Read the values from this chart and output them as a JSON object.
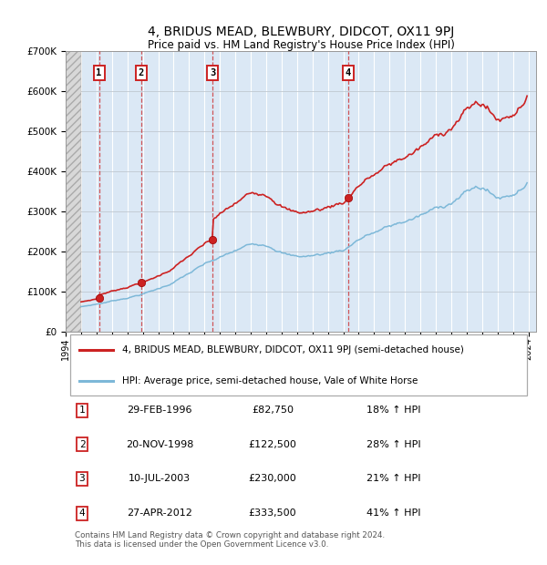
{
  "title": "4, BRIDUS MEAD, BLEWBURY, DIDCOT, OX11 9PJ",
  "subtitle": "Price paid vs. HM Land Registry's House Price Index (HPI)",
  "sale_details": [
    {
      "num": "1",
      "date": "29-FEB-1996",
      "price": "£82,750",
      "hpi": "18% ↑ HPI"
    },
    {
      "num": "2",
      "date": "20-NOV-1998",
      "price": "£122,500",
      "hpi": "28% ↑ HPI"
    },
    {
      "num": "3",
      "date": "10-JUL-2003",
      "price": "£230,000",
      "hpi": "21% ↑ HPI"
    },
    {
      "num": "4",
      "date": "27-APR-2012",
      "price": "£333,500",
      "hpi": "41% ↑ HPI"
    }
  ],
  "sale_dates_numeric": [
    1996.163,
    1998.893,
    2003.526,
    2012.327
  ],
  "sale_prices": [
    82750,
    122500,
    230000,
    333500
  ],
  "hpi_line_color": "#7db8d8",
  "price_line_color": "#cc2222",
  "label_box_color": "#cc2222",
  "chart_bg_color": "#dbe8f5",
  "ylim": [
    0,
    700000
  ],
  "xlim_start": 1994.0,
  "xlim_end": 2024.5,
  "hatch_end": 1995.0,
  "legend_label_property": "4, BRIDUS MEAD, BLEWBURY, DIDCOT, OX11 9PJ (semi-detached house)",
  "legend_label_hpi": "HPI: Average price, semi-detached house, Vale of White Horse",
  "footnote": "Contains HM Land Registry data © Crown copyright and database right 2024.\nThis data is licensed under the Open Government Licence v3.0."
}
